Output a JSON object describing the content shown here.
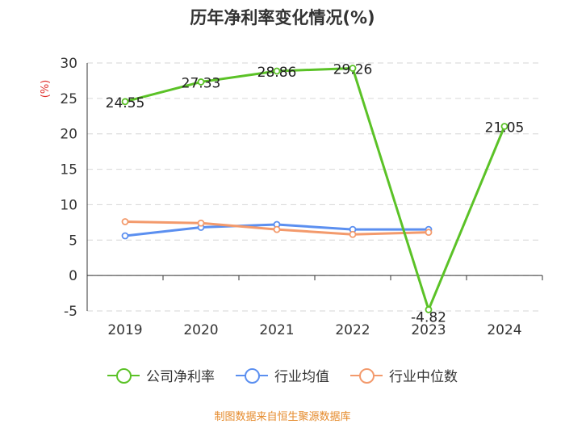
{
  "chart_data": {
    "type": "line",
    "title": "历年净利率变化情况(%)",
    "ylabel": "(%)",
    "xlabel": "",
    "categories": [
      "2019",
      "2020",
      "2021",
      "2022",
      "2023",
      "2024"
    ],
    "ylim": [
      -5,
      30
    ],
    "yticks": [
      -5,
      0,
      5,
      10,
      15,
      20,
      25,
      30
    ],
    "grid": true,
    "legend_position": "bottom",
    "series": [
      {
        "name": "公司净利率",
        "color": "#5bc227",
        "values": [
          24.55,
          27.33,
          28.86,
          29.26,
          -4.82,
          21.05
        ],
        "labels": [
          "24.55",
          "27.33",
          "28.86",
          "29.26",
          "-4.82",
          "21.05"
        ],
        "show_labels": true
      },
      {
        "name": "行业均值",
        "color": "#5b8ff0",
        "values": [
          5.6,
          6.8,
          7.2,
          6.5,
          6.5,
          null
        ],
        "show_labels": false
      },
      {
        "name": "行业中位数",
        "color": "#f39a6c",
        "values": [
          7.6,
          7.4,
          6.5,
          5.8,
          6.1,
          null
        ],
        "show_labels": false
      }
    ]
  },
  "source_note": "制图数据来自恒生聚源数据库"
}
